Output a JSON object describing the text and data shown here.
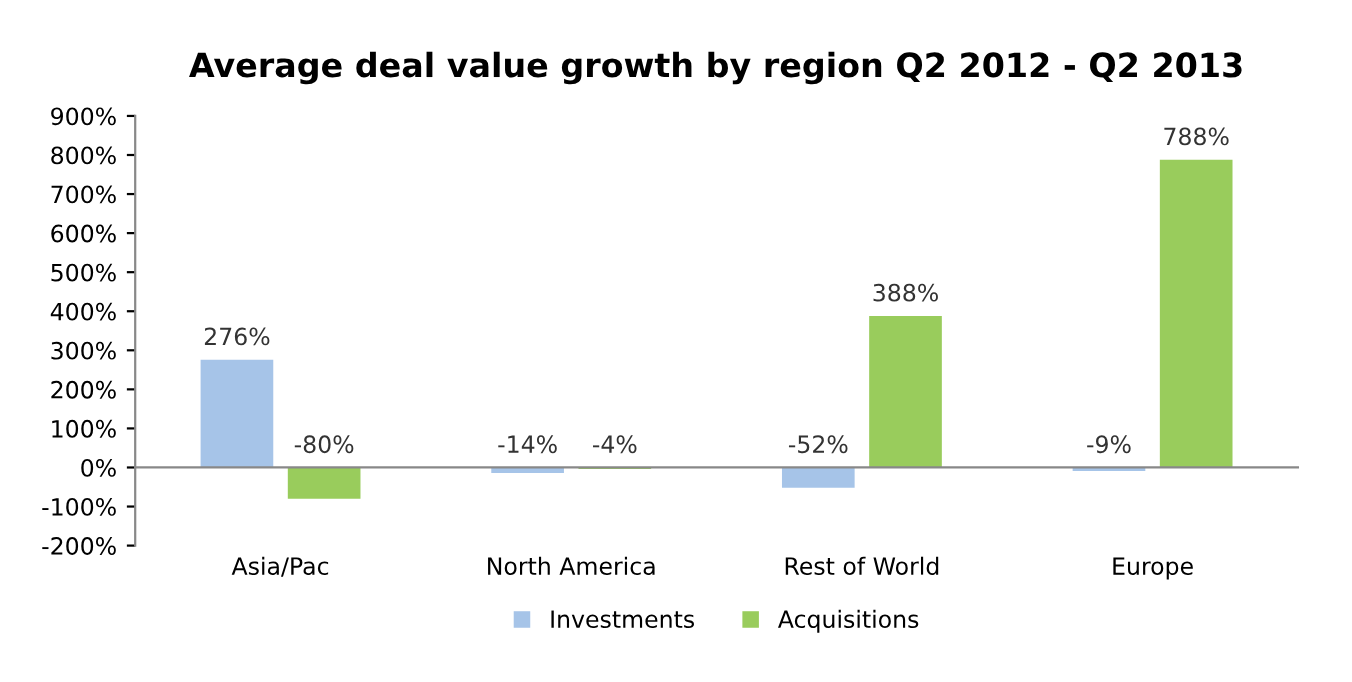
{
  "chart_data": {
    "type": "bar",
    "title": "Average deal value growth by region Q2 2012 - Q2 2013",
    "categories": [
      "Asia/Pac",
      "North America",
      "Rest of World",
      "Europe"
    ],
    "series": [
      {
        "name": "Investments",
        "color": "#a6c4e8",
        "values": [
          276,
          -14,
          -52,
          -9
        ],
        "value_labels": [
          "276%",
          "-14%",
          "-52%",
          "-9%"
        ]
      },
      {
        "name": "Acquisitions",
        "color": "#99cc5c",
        "values": [
          -80,
          -4,
          388,
          788
        ],
        "value_labels": [
          "-80%",
          "-4%",
          "388%",
          "788%"
        ]
      }
    ],
    "ylim": [
      -200,
      900
    ],
    "yticks": [
      {
        "value": -200,
        "label": "-200%"
      },
      {
        "value": -100,
        "label": "-100%"
      },
      {
        "value": 0,
        "label": "0%"
      },
      {
        "value": 100,
        "label": "100%"
      },
      {
        "value": 200,
        "label": "200%"
      },
      {
        "value": 300,
        "label": "300%"
      },
      {
        "value": 400,
        "label": "400%"
      },
      {
        "value": 500,
        "label": "500%"
      },
      {
        "value": 600,
        "label": "600%"
      },
      {
        "value": 700,
        "label": "700%"
      },
      {
        "value": 800,
        "label": "800%"
      },
      {
        "value": 900,
        "label": "900%"
      }
    ],
    "legend": "bottom"
  }
}
